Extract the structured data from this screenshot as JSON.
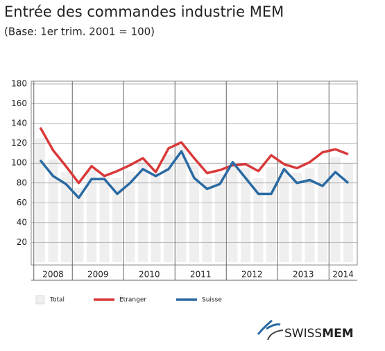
{
  "chart_data": {
    "type": "line",
    "title": "Entrée des commandes industrie MEM",
    "subtitle": "(Base: 1er trim. 2001 = 100)",
    "categories": [
      "2008",
      null,
      null,
      "2009",
      null,
      null,
      null,
      "2010",
      null,
      null,
      null,
      "2011",
      null,
      null,
      null,
      "2012",
      null,
      null,
      null,
      "2013",
      null,
      null,
      null,
      "2014",
      null
    ],
    "series": [
      {
        "name": "Total",
        "type": "bar",
        "color": "#efefef",
        "values": [
          125,
          104,
          91,
          75,
          93,
          86,
          85,
          92,
          101,
          89,
          109,
          118,
          98,
          85,
          89,
          99,
          95,
          85,
          96,
          97,
          90,
          95,
          100,
          106,
          100
        ]
      },
      {
        "name": "Étranger",
        "type": "line",
        "color": "#d9393a",
        "values": [
          136,
          113,
          97,
          80,
          97,
          87,
          92,
          98,
          105,
          91,
          115,
          121,
          105,
          90,
          93,
          98,
          99,
          92,
          108,
          99,
          95,
          101,
          111,
          114,
          109
        ]
      },
      {
        "name": "Suisse",
        "type": "line",
        "color": "#2a6aa3",
        "values": [
          103,
          87,
          79,
          65,
          84,
          84,
          69,
          80,
          94,
          87,
          94,
          112,
          85,
          74,
          79,
          101,
          85,
          69,
          69,
          94,
          80,
          83,
          77,
          91,
          80
        ]
      }
    ],
    "ylim": [
      0,
      180
    ],
    "yticks": [
      20,
      40,
      60,
      80,
      100,
      120,
      140,
      160,
      180
    ],
    "grid": true,
    "legend": "bottom"
  },
  "logo": {
    "part1": "SWISS",
    "part2": "MEM"
  }
}
